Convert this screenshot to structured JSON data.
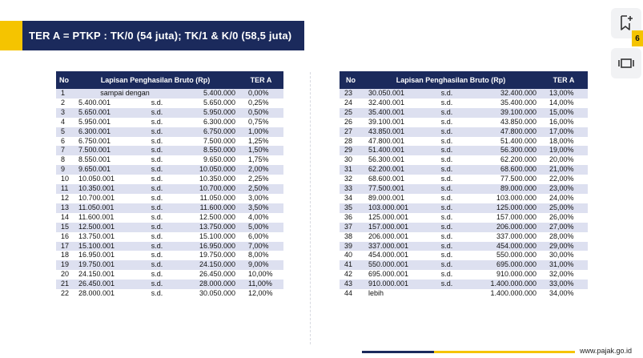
{
  "title": "TER A = PTKP : TK/0 (54 juta); TK/1 & K/0 (58,5 juta)",
  "page_number": "6",
  "footer_site": "www.pajak.go.id",
  "icons": {
    "bookmark": "bookmark-add-icon",
    "slides": "slide-view-icon"
  },
  "colors": {
    "navy": "#1b2a5c",
    "yellow": "#f5c400",
    "row_stripe": "#dde0f0"
  },
  "table": {
    "headers": {
      "no": "No",
      "range": "Lapisan Penghasilan Bruto (Rp)",
      "rate": "TER A"
    },
    "left_rows": [
      {
        "no": "1",
        "from": "sampai dengan",
        "sd": "",
        "to": "5.400.000",
        "rate": "0,00%",
        "joined": true
      },
      {
        "no": "2",
        "from": "5.400.001",
        "sd": "s.d.",
        "to": "5.650.000",
        "rate": "0,25%"
      },
      {
        "no": "3",
        "from": "5.650.001",
        "sd": "s.d.",
        "to": "5.950.000",
        "rate": "0,50%"
      },
      {
        "no": "4",
        "from": "5.950.001",
        "sd": "s.d.",
        "to": "6.300.000",
        "rate": "0,75%"
      },
      {
        "no": "5",
        "from": "6.300.001",
        "sd": "s.d.",
        "to": "6.750.000",
        "rate": "1,00%"
      },
      {
        "no": "6",
        "from": "6.750.001",
        "sd": "s.d.",
        "to": "7.500.000",
        "rate": "1,25%"
      },
      {
        "no": "7",
        "from": "7.500.001",
        "sd": "s.d.",
        "to": "8.550.000",
        "rate": "1,50%"
      },
      {
        "no": "8",
        "from": "8.550.001",
        "sd": "s.d.",
        "to": "9.650.000",
        "rate": "1,75%"
      },
      {
        "no": "9",
        "from": "9.650.001",
        "sd": "s.d.",
        "to": "10.050.000",
        "rate": "2,00%"
      },
      {
        "no": "10",
        "from": "10.050.001",
        "sd": "s.d.",
        "to": "10.350.000",
        "rate": "2,25%"
      },
      {
        "no": "11",
        "from": "10.350.001",
        "sd": "s.d.",
        "to": "10.700.000",
        "rate": "2,50%"
      },
      {
        "no": "12",
        "from": "10.700.001",
        "sd": "s.d.",
        "to": "11.050.000",
        "rate": "3,00%"
      },
      {
        "no": "13",
        "from": "11.050.001",
        "sd": "s.d.",
        "to": "11.600.000",
        "rate": "3,50%"
      },
      {
        "no": "14",
        "from": "11.600.001",
        "sd": "s.d.",
        "to": "12.500.000",
        "rate": "4,00%"
      },
      {
        "no": "15",
        "from": "12.500.001",
        "sd": "s.d.",
        "to": "13.750.000",
        "rate": "5,00%"
      },
      {
        "no": "16",
        "from": "13.750.001",
        "sd": "s.d.",
        "to": "15.100.000",
        "rate": "6,00%"
      },
      {
        "no": "17",
        "from": "15.100.001",
        "sd": "s.d.",
        "to": "16.950.000",
        "rate": "7,00%"
      },
      {
        "no": "18",
        "from": "16.950.001",
        "sd": "s.d.",
        "to": "19.750.000",
        "rate": "8,00%"
      },
      {
        "no": "19",
        "from": "19.750.001",
        "sd": "s.d.",
        "to": "24.150.000",
        "rate": "9,00%"
      },
      {
        "no": "20",
        "from": "24.150.001",
        "sd": "s.d.",
        "to": "26.450.000",
        "rate": "10,00%"
      },
      {
        "no": "21",
        "from": "26.450.001",
        "sd": "s.d.",
        "to": "28.000.000",
        "rate": "11,00%"
      },
      {
        "no": "22",
        "from": "28.000.001",
        "sd": "s.d.",
        "to": "30.050.000",
        "rate": "12,00%"
      }
    ],
    "right_rows": [
      {
        "no": "23",
        "from": "30.050.001",
        "sd": "s.d.",
        "to": "32.400.000",
        "rate": "13,00%"
      },
      {
        "no": "24",
        "from": "32.400.001",
        "sd": "s.d.",
        "to": "35.400.000",
        "rate": "14,00%"
      },
      {
        "no": "25",
        "from": "35.400.001",
        "sd": "s.d.",
        "to": "39.100.000",
        "rate": "15,00%"
      },
      {
        "no": "26",
        "from": "39.100.001",
        "sd": "s.d.",
        "to": "43.850.000",
        "rate": "16,00%"
      },
      {
        "no": "27",
        "from": "43.850.001",
        "sd": "s.d.",
        "to": "47.800.000",
        "rate": "17,00%"
      },
      {
        "no": "28",
        "from": "47.800.001",
        "sd": "s.d.",
        "to": "51.400.000",
        "rate": "18,00%"
      },
      {
        "no": "29",
        "from": "51.400.001",
        "sd": "s.d.",
        "to": "56.300.000",
        "rate": "19,00%"
      },
      {
        "no": "30",
        "from": "56.300.001",
        "sd": "s.d.",
        "to": "62.200.000",
        "rate": "20,00%"
      },
      {
        "no": "31",
        "from": "62.200.001",
        "sd": "s.d.",
        "to": "68.600.000",
        "rate": "21,00%"
      },
      {
        "no": "32",
        "from": "68.600.001",
        "sd": "s.d.",
        "to": "77.500.000",
        "rate": "22,00%"
      },
      {
        "no": "33",
        "from": "77.500.001",
        "sd": "s.d.",
        "to": "89.000.000",
        "rate": "23,00%"
      },
      {
        "no": "34",
        "from": "89.000.001",
        "sd": "s.d.",
        "to": "103.000.000",
        "rate": "24,00%"
      },
      {
        "no": "35",
        "from": "103.000.001",
        "sd": "s.d.",
        "to": "125.000.000",
        "rate": "25,00%"
      },
      {
        "no": "36",
        "from": "125.000.001",
        "sd": "s.d.",
        "to": "157.000.000",
        "rate": "26,00%"
      },
      {
        "no": "37",
        "from": "157.000.001",
        "sd": "s.d.",
        "to": "206.000.000",
        "rate": "27,00%"
      },
      {
        "no": "38",
        "from": "206.000.001",
        "sd": "s.d.",
        "to": "337.000.000",
        "rate": "28,00%"
      },
      {
        "no": "39",
        "from": "337.000.001",
        "sd": "s.d.",
        "to": "454.000.000",
        "rate": "29,00%"
      },
      {
        "no": "40",
        "from": "454.000.001",
        "sd": "s.d.",
        "to": "550.000.000",
        "rate": "30,00%"
      },
      {
        "no": "41",
        "from": "550.000.001",
        "sd": "s.d.",
        "to": "695.000.000",
        "rate": "31,00%"
      },
      {
        "no": "42",
        "from": "695.000.001",
        "sd": "s.d.",
        "to": "910.000.000",
        "rate": "32,00%"
      },
      {
        "no": "43",
        "from": "910.000.001",
        "sd": "s.d.",
        "to": "1.400.000.000",
        "rate": "33,00%"
      },
      {
        "no": "44",
        "from": "lebih",
        "sd": "",
        "to": "1.400.000.000",
        "rate": "34,00%"
      }
    ]
  }
}
